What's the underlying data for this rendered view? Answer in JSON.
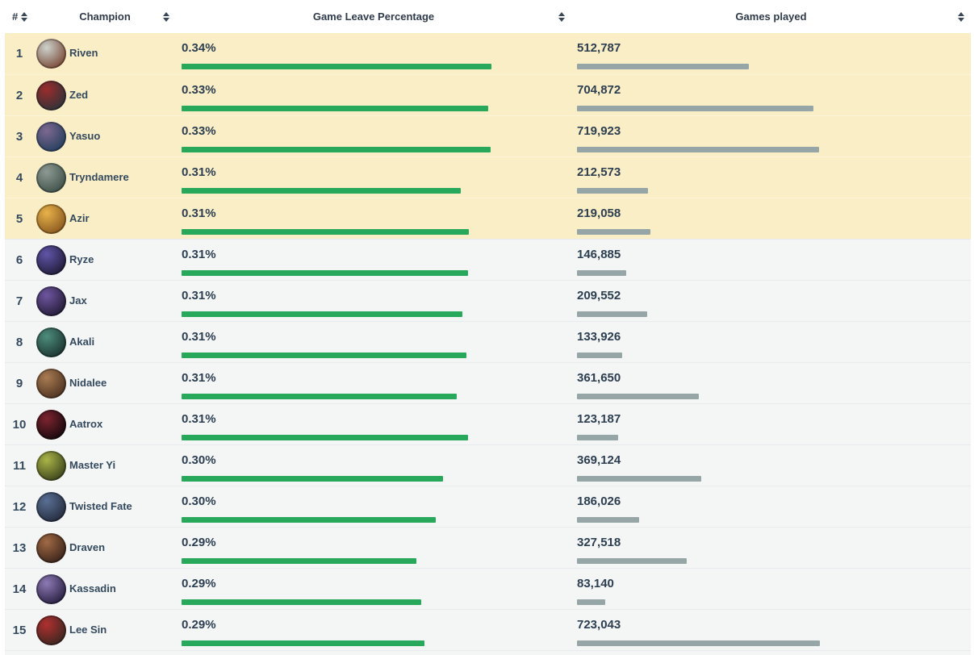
{
  "table": {
    "columns": [
      {
        "label": "#",
        "sortable": true
      },
      {
        "label": "Champion",
        "sortable": true
      },
      {
        "label": "Game Leave Percentage",
        "sortable": true
      },
      {
        "label": "Games played",
        "sortable": true
      }
    ],
    "colors": {
      "leave_bar": "#28a85a",
      "games_bar": "#96a6a6",
      "highlight_row_bg": "#faeec6",
      "row_bg": "#f4f6f6",
      "header_text": "#2f3a4a",
      "cell_text": "#34495e"
    },
    "rows": [
      {
        "rank": "1",
        "champion": "Riven",
        "leave": "0.34%",
        "leave_bar": 1.0,
        "games": "512,787",
        "games_bar": 0.709,
        "highlighted": true,
        "avatar_colors": [
          "#cdd3cc",
          "#7a4b3a"
        ]
      },
      {
        "rank": "2",
        "champion": "Zed",
        "leave": "0.33%",
        "leave_bar": 0.99,
        "games": "704,872",
        "games_bar": 0.975,
        "highlighted": true,
        "avatar_colors": [
          "#9b2c2c",
          "#2f3338"
        ]
      },
      {
        "rank": "3",
        "champion": "Yasuo",
        "leave": "0.33%",
        "leave_bar": 0.997,
        "games": "719,923",
        "games_bar": 0.996,
        "highlighted": true,
        "avatar_colors": [
          "#7d6890",
          "#27405e"
        ]
      },
      {
        "rank": "4",
        "champion": "Tryndamere",
        "leave": "0.31%",
        "leave_bar": 0.901,
        "games": "212,573",
        "games_bar": 0.294,
        "highlighted": true,
        "avatar_colors": [
          "#8d9a93",
          "#41524b"
        ]
      },
      {
        "rank": "5",
        "champion": "Azir",
        "leave": "0.31%",
        "leave_bar": 0.927,
        "games": "219,058",
        "games_bar": 0.303,
        "highlighted": true,
        "avatar_colors": [
          "#e8b24a",
          "#8a5a20"
        ]
      },
      {
        "rank": "6",
        "champion": "Ryze",
        "leave": "0.31%",
        "leave_bar": 0.924,
        "games": "146,885",
        "games_bar": 0.203,
        "highlighted": false,
        "avatar_colors": [
          "#5f55a8",
          "#221d3a"
        ]
      },
      {
        "rank": "7",
        "champion": "Jax",
        "leave": "0.31%",
        "leave_bar": 0.906,
        "games": "209,552",
        "games_bar": 0.29,
        "highlighted": false,
        "avatar_colors": [
          "#6f56a0",
          "#241c38"
        ]
      },
      {
        "rank": "8",
        "champion": "Akali",
        "leave": "0.31%",
        "leave_bar": 0.919,
        "games": "133,926",
        "games_bar": 0.185,
        "highlighted": false,
        "avatar_colors": [
          "#4e8d7c",
          "#1c3531"
        ]
      },
      {
        "rank": "9",
        "champion": "Nidalee",
        "leave": "0.31%",
        "leave_bar": 0.888,
        "games": "361,650",
        "games_bar": 0.5,
        "highlighted": false,
        "avatar_colors": [
          "#a97c52",
          "#4e3322"
        ]
      },
      {
        "rank": "10",
        "champion": "Aatrox",
        "leave": "0.31%",
        "leave_bar": 0.924,
        "games": "123,187",
        "games_bar": 0.17,
        "highlighted": false,
        "avatar_colors": [
          "#7e2430",
          "#17090d"
        ]
      },
      {
        "rank": "11",
        "champion": "Master Yi",
        "leave": "0.30%",
        "leave_bar": 0.844,
        "games": "369,124",
        "games_bar": 0.511,
        "highlighted": false,
        "avatar_colors": [
          "#aab548",
          "#3e451c"
        ]
      },
      {
        "rank": "12",
        "champion": "Twisted Fate",
        "leave": "0.30%",
        "leave_bar": 0.82,
        "games": "186,026",
        "games_bar": 0.257,
        "highlighted": false,
        "avatar_colors": [
          "#5a6f94",
          "#252d3f"
        ]
      },
      {
        "rank": "13",
        "champion": "Draven",
        "leave": "0.29%",
        "leave_bar": 0.758,
        "games": "327,518",
        "games_bar": 0.453,
        "highlighted": false,
        "avatar_colors": [
          "#a06a45",
          "#3c241a"
        ]
      },
      {
        "rank": "14",
        "champion": "Kassadin",
        "leave": "0.29%",
        "leave_bar": 0.773,
        "games": "83,140",
        "games_bar": 0.115,
        "highlighted": false,
        "avatar_colors": [
          "#8d7ab5",
          "#2a2142"
        ]
      },
      {
        "rank": "15",
        "champion": "Lee Sin",
        "leave": "0.29%",
        "leave_bar": 0.784,
        "games": "723,043",
        "games_bar": 1.0,
        "highlighted": false,
        "avatar_colors": [
          "#b03030",
          "#3c2620"
        ]
      }
    ]
  },
  "chart_data": {
    "type": "table",
    "columns": [
      "#",
      "Champion",
      "Game Leave Percentage",
      "Games played"
    ],
    "rows": [
      [
        1,
        "Riven",
        0.34,
        512787
      ],
      [
        2,
        "Zed",
        0.33,
        704872
      ],
      [
        3,
        "Yasuo",
        0.33,
        719923
      ],
      [
        4,
        "Tryndamere",
        0.31,
        212573
      ],
      [
        5,
        "Azir",
        0.31,
        219058
      ],
      [
        6,
        "Ryze",
        0.31,
        146885
      ],
      [
        7,
        "Jax",
        0.31,
        209552
      ],
      [
        8,
        "Akali",
        0.31,
        133926
      ],
      [
        9,
        "Nidalee",
        0.31,
        361650
      ],
      [
        10,
        "Aatrox",
        0.31,
        123187
      ],
      [
        11,
        "Master Yi",
        0.3,
        369124
      ],
      [
        12,
        "Twisted Fate",
        0.3,
        186026
      ],
      [
        13,
        "Draven",
        0.29,
        327518
      ],
      [
        14,
        "Kassadin",
        0.29,
        83140
      ],
      [
        15,
        "Lee Sin",
        0.29,
        723043
      ]
    ]
  }
}
